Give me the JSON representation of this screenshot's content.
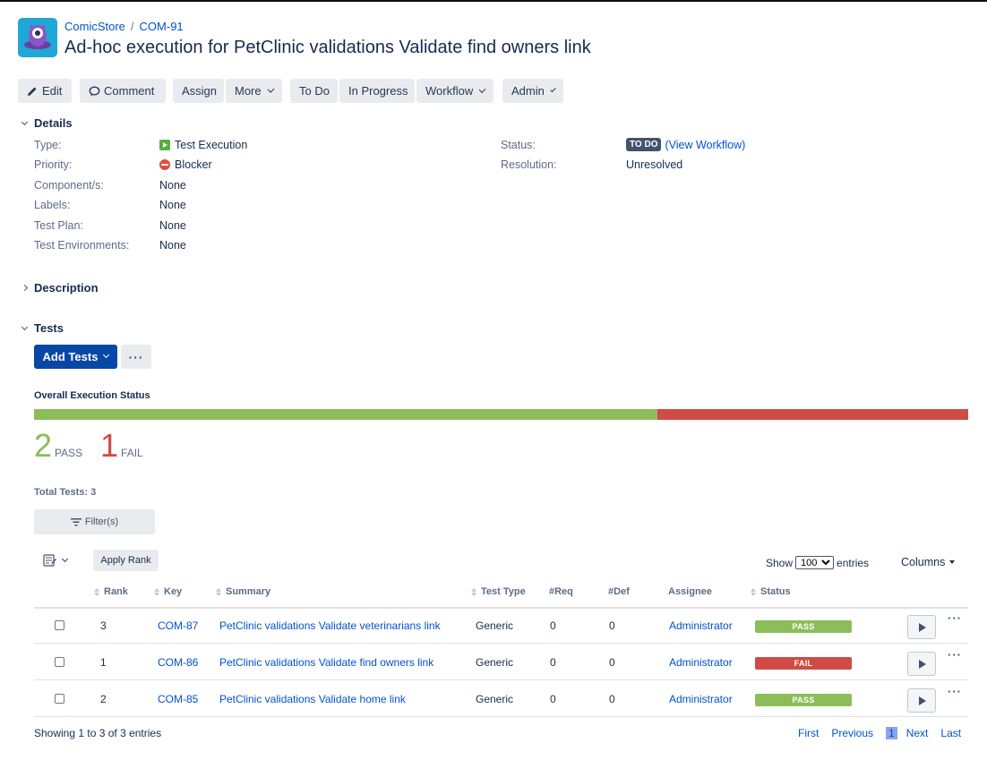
{
  "breadcrumb": {
    "project": "ComicStore",
    "sep": "/",
    "issue_key": "COM-91"
  },
  "title": "Ad-hoc execution for PetClinic validations Validate find owners link",
  "toolbar": {
    "edit": "Edit",
    "comment": "Comment",
    "assign": "Assign",
    "more": "More",
    "todo": "To Do",
    "in_progress": "In Progress",
    "workflow": "Workflow",
    "admin": "Admin"
  },
  "details": {
    "heading": "Details",
    "type_label": "Type:",
    "type_value": "Test Execution",
    "priority_label": "Priority:",
    "priority_value": "Blocker",
    "components_label": "Component/s:",
    "components_value": "None",
    "labels_label": "Labels:",
    "labels_value": "None",
    "test_plan_label": "Test Plan:",
    "test_plan_value": "None",
    "test_env_label": "Test Environments:",
    "test_env_value": "None",
    "status_label": "Status:",
    "status_value": "TO DO",
    "view_workflow": "(View Workflow)",
    "resolution_label": "Resolution:",
    "resolution_value": "Unresolved"
  },
  "description": {
    "heading": "Description"
  },
  "tests": {
    "heading": "Tests",
    "add_tests": "Add Tests",
    "more_actions": "···",
    "overall_status_title": "Overall Execution Status",
    "pass_count": "2",
    "pass_label": "PASS",
    "pass_fraction": 0.667,
    "fail_count": "1",
    "fail_label": "FAIL",
    "fail_fraction": 0.333,
    "colors": {
      "pass": "#8bbe59",
      "fail": "#d04b45"
    },
    "total_tests": "Total Tests: 3",
    "filter_label": "Filter(s)",
    "apply_rank": "Apply Rank",
    "show": "Show",
    "page_size": "100",
    "entries": "entries",
    "columns": "Columns"
  },
  "table": {
    "headers": {
      "rank": "Rank",
      "key": "Key",
      "summary": "Summary",
      "test_type": "Test Type",
      "req": "#Req",
      "def": "#Def",
      "assignee": "Assignee",
      "status": "Status"
    },
    "rows": [
      {
        "rank": "3",
        "key": "COM-87",
        "summary": "PetClinic validations Validate veterinarians link",
        "test_type": "Generic",
        "req": "0",
        "def": "0",
        "assignee": "Administrator",
        "status": "PASS"
      },
      {
        "rank": "1",
        "key": "COM-86",
        "summary": "PetClinic validations Validate find owners link",
        "test_type": "Generic",
        "req": "0",
        "def": "0",
        "assignee": "Administrator",
        "status": "FAIL"
      },
      {
        "rank": "2",
        "key": "COM-85",
        "summary": "PetClinic validations Validate home link",
        "test_type": "Generic",
        "req": "0",
        "def": "0",
        "assignee": "Administrator",
        "status": "PASS"
      }
    ],
    "row_more": "···"
  },
  "footer": {
    "showing": "Showing 1 to 3 of 3 entries",
    "first": "First",
    "previous": "Previous",
    "current_page": "1",
    "next": "Next",
    "last": "Last"
  }
}
